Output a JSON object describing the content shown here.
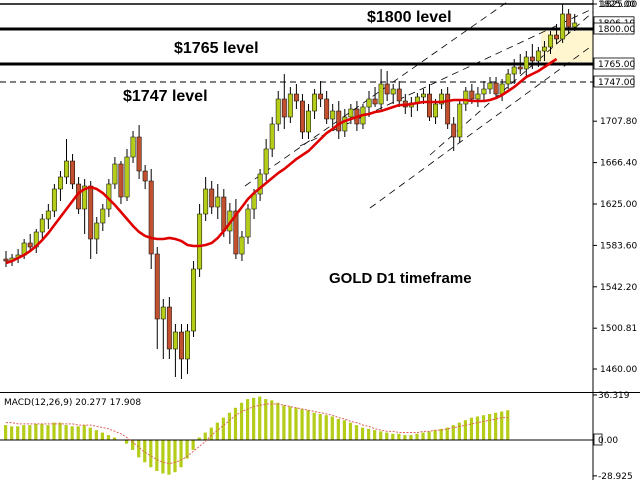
{
  "chart_data": [
    {
      "type": "candlestick",
      "title": "GOLD D1 timeframe",
      "instrument": "GOLD",
      "timeframe": "D1",
      "y_ticks": [
        1460.0,
        1500.81,
        1542.2,
        1583.6,
        1625.0,
        1666.4,
        1707.8,
        1747.0,
        1765.0,
        1800.0,
        1825.0
      ],
      "ylim": [
        1450,
        1828
      ],
      "right_labels": {
        "top": "1825.00",
        "current_price": "1806.19",
        "overlap": "1795.60",
        "l1800": "1800.00",
        "l1765": "1765.00",
        "l1747": "1747.00"
      },
      "levels": [
        {
          "value": 1800,
          "label": "$1800 level",
          "style": "solid",
          "color": "#000000"
        },
        {
          "value": 1765,
          "label": "$1765 level",
          "style": "solid",
          "color": "#000000"
        },
        {
          "value": 1747,
          "label": "$1747 level",
          "style": "dashed",
          "color": "#000000"
        },
        {
          "value": 1825,
          "label": "",
          "style": "solid",
          "color": "#000000"
        }
      ],
      "candles_ohlc": [
        [
          1570,
          1578,
          1562,
          1568
        ],
        [
          1568,
          1575,
          1563,
          1571
        ],
        [
          1571,
          1580,
          1566,
          1574
        ],
        [
          1574,
          1590,
          1570,
          1586
        ],
        [
          1586,
          1595,
          1578,
          1582
        ],
        [
          1582,
          1600,
          1576,
          1597
        ],
        [
          1597,
          1615,
          1590,
          1610
        ],
        [
          1610,
          1625,
          1600,
          1618
        ],
        [
          1618,
          1645,
          1612,
          1640
        ],
        [
          1640,
          1658,
          1628,
          1652
        ],
        [
          1652,
          1690,
          1645,
          1668
        ],
        [
          1668,
          1675,
          1640,
          1645
        ],
        [
          1645,
          1652,
          1615,
          1620
        ],
        [
          1620,
          1650,
          1595,
          1643
        ],
        [
          1643,
          1648,
          1570,
          1590
        ],
        [
          1590,
          1612,
          1575,
          1606
        ],
        [
          1606,
          1625,
          1598,
          1620
        ],
        [
          1620,
          1650,
          1612,
          1645
        ],
        [
          1645,
          1672,
          1640,
          1665
        ],
        [
          1665,
          1668,
          1625,
          1632
        ],
        [
          1632,
          1680,
          1628,
          1672
        ],
        [
          1672,
          1698,
          1666,
          1692
        ],
        [
          1692,
          1704,
          1650,
          1658
        ],
        [
          1658,
          1664,
          1640,
          1648
        ],
        [
          1648,
          1660,
          1560,
          1575
        ],
        [
          1575,
          1582,
          1480,
          1510
        ],
        [
          1510,
          1530,
          1470,
          1522
        ],
        [
          1522,
          1532,
          1470,
          1480
        ],
        [
          1480,
          1505,
          1452,
          1497
        ],
        [
          1497,
          1505,
          1450,
          1470
        ],
        [
          1470,
          1505,
          1455,
          1498
        ],
        [
          1498,
          1568,
          1492,
          1560
        ],
        [
          1560,
          1625,
          1552,
          1615
        ],
        [
          1615,
          1652,
          1608,
          1640
        ],
        [
          1640,
          1648,
          1615,
          1622
        ],
        [
          1622,
          1645,
          1610,
          1632
        ],
        [
          1632,
          1640,
          1592,
          1598
        ],
        [
          1598,
          1626,
          1585,
          1618
        ],
        [
          1618,
          1630,
          1570,
          1575
        ],
        [
          1575,
          1598,
          1568,
          1592
        ],
        [
          1592,
          1625,
          1585,
          1620
        ],
        [
          1620,
          1640,
          1610,
          1635
        ],
        [
          1635,
          1660,
          1628,
          1655
        ],
        [
          1655,
          1690,
          1648,
          1680
        ],
        [
          1680,
          1712,
          1672,
          1705
        ],
        [
          1705,
          1738,
          1698,
          1730
        ],
        [
          1730,
          1755,
          1700,
          1712
        ],
        [
          1712,
          1742,
          1706,
          1735
        ],
        [
          1735,
          1745,
          1720,
          1728
        ],
        [
          1728,
          1735,
          1690,
          1697
        ],
        [
          1697,
          1725,
          1690,
          1718
        ],
        [
          1718,
          1740,
          1710,
          1735
        ],
        [
          1735,
          1748,
          1722,
          1730
        ],
        [
          1730,
          1738,
          1705,
          1710
        ],
        [
          1710,
          1725,
          1700,
          1718
        ],
        [
          1718,
          1728,
          1690,
          1698
        ],
        [
          1698,
          1720,
          1692,
          1712
        ],
        [
          1712,
          1725,
          1705,
          1720
        ],
        [
          1720,
          1728,
          1698,
          1705
        ],
        [
          1705,
          1725,
          1700,
          1722
        ],
        [
          1722,
          1738,
          1712,
          1730
        ],
        [
          1730,
          1742,
          1722,
          1725
        ],
        [
          1725,
          1760,
          1718,
          1745
        ],
        [
          1745,
          1758,
          1728,
          1735
        ],
        [
          1735,
          1745,
          1725,
          1740
        ],
        [
          1740,
          1748,
          1722,
          1728
        ],
        [
          1728,
          1735,
          1715,
          1722
        ],
        [
          1722,
          1732,
          1712,
          1726
        ],
        [
          1726,
          1736,
          1718,
          1732
        ],
        [
          1732,
          1740,
          1725,
          1735
        ],
        [
          1735,
          1745,
          1708,
          1712
        ],
        [
          1712,
          1730,
          1705,
          1725
        ],
        [
          1725,
          1740,
          1720,
          1735
        ],
        [
          1735,
          1742,
          1700,
          1705
        ],
        [
          1705,
          1712,
          1678,
          1692
        ],
        [
          1692,
          1730,
          1686,
          1725
        ],
        [
          1725,
          1742,
          1718,
          1738
        ],
        [
          1738,
          1745,
          1725,
          1730
        ],
        [
          1730,
          1742,
          1722,
          1735
        ],
        [
          1735,
          1748,
          1728,
          1740
        ],
        [
          1740,
          1752,
          1735,
          1746
        ],
        [
          1746,
          1752,
          1730,
          1735
        ],
        [
          1735,
          1750,
          1728,
          1745
        ],
        [
          1745,
          1760,
          1740,
          1755
        ],
        [
          1755,
          1770,
          1745,
          1762
        ],
        [
          1762,
          1775,
          1755,
          1760
        ],
        [
          1760,
          1778,
          1752,
          1772
        ],
        [
          1772,
          1785,
          1760,
          1768
        ],
        [
          1768,
          1782,
          1762,
          1778
        ],
        [
          1778,
          1788,
          1768,
          1782
        ],
        [
          1782,
          1798,
          1775,
          1794
        ],
        [
          1794,
          1805,
          1785,
          1790
        ],
        [
          1790,
          1825,
          1786,
          1815
        ],
        [
          1815,
          1820,
          1795,
          1802
        ],
        [
          1802,
          1815,
          1798,
          1806
        ]
      ],
      "moving_average": {
        "color": "#e00000",
        "values": [
          1566,
          1568,
          1571,
          1574,
          1578,
          1583,
          1589,
          1596,
          1604,
          1612,
          1620,
          1628,
          1636,
          1640,
          1642,
          1640,
          1636,
          1630,
          1624,
          1617,
          1610,
          1603,
          1597,
          1593,
          1591,
          1590,
          1590,
          1591,
          1590,
          1588,
          1584,
          1583,
          1583,
          1584,
          1586,
          1591,
          1598,
          1606,
          1614,
          1622,
          1630,
          1636,
          1641,
          1646,
          1651,
          1656,
          1660,
          1665,
          1670,
          1674,
          1678,
          1684,
          1690,
          1696,
          1700,
          1705,
          1708,
          1710,
          1712,
          1714,
          1715,
          1717,
          1718,
          1720,
          1722,
          1724,
          1724,
          1725,
          1726,
          1727,
          1727,
          1727,
          1727,
          1728,
          1729,
          1729,
          1729,
          1728,
          1728,
          1728,
          1729,
          1731,
          1734,
          1738,
          1742,
          1747,
          1752,
          1755,
          1758,
          1762,
          1766,
          1770
        ]
      }
    },
    {
      "type": "bar",
      "title": "MACD(12,26,9) 20.277 17.908",
      "y_ticks_labels": [
        "36.319",
        "0.00",
        "-28.925"
      ],
      "ylim": [
        -29,
        37
      ],
      "bar_color": "#b5cc18",
      "signal_color": "#e06060",
      "histogram": [
        12,
        11,
        11,
        12,
        12,
        13,
        13,
        12,
        14,
        14,
        12,
        11,
        11,
        12,
        10,
        8,
        6,
        4,
        2,
        0,
        -3,
        -8,
        -14,
        -18,
        -22,
        -25,
        -27,
        -28,
        -26,
        -22,
        -15,
        -8,
        2,
        6,
        10,
        14,
        18,
        22,
        26,
        30,
        33,
        34,
        35,
        33,
        32,
        30,
        28,
        27,
        26,
        25,
        24,
        22,
        21,
        20,
        19,
        17,
        16,
        14,
        12,
        10,
        9,
        8,
        7,
        6,
        5,
        5,
        4,
        4,
        5,
        6,
        7,
        8,
        9,
        10,
        12,
        14,
        16,
        18,
        19,
        20,
        21,
        22,
        23,
        24
      ],
      "signal": [
        14,
        14,
        13,
        13,
        13,
        13,
        13,
        13,
        13,
        13,
        13,
        13,
        12,
        12,
        12,
        11,
        10,
        9,
        7,
        5,
        2,
        -2,
        -6,
        -10,
        -13,
        -16,
        -18,
        -19,
        -18,
        -16,
        -13,
        -9,
        -5,
        -1,
        4,
        8,
        12,
        16,
        20,
        23,
        25,
        27,
        28,
        29,
        29,
        29,
        28,
        27,
        26,
        25,
        24,
        23,
        22,
        21,
        20,
        18,
        17,
        15,
        14,
        12,
        11,
        9,
        8,
        7,
        7,
        6,
        6,
        6,
        6,
        7,
        7,
        8,
        8,
        9,
        10,
        11,
        12,
        13,
        14,
        15,
        16,
        17,
        18,
        18
      ]
    }
  ],
  "labels": {
    "level_1800": "$1800 level",
    "level_1765": "$1765 level",
    "level_1747": "$1747 level",
    "title": "GOLD D1 timeframe",
    "macd_title": "MACD(12,26,9) 20.277 17.908"
  }
}
